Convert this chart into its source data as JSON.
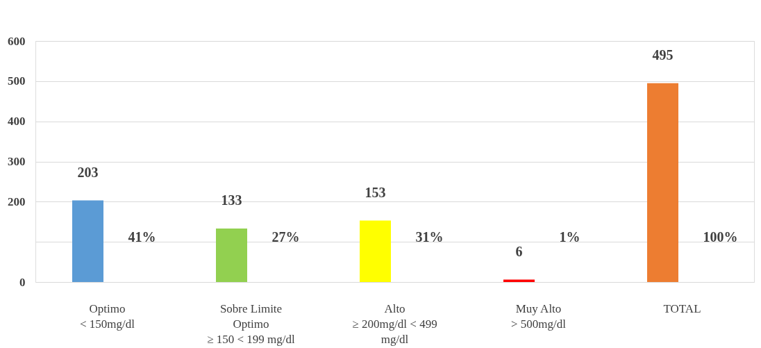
{
  "chart_data": {
    "type": "bar",
    "categories": [
      "Optimo\n< 150mg/dl",
      "Sobre Limite\nOptimo\n≥ 150  < 199 mg/dl",
      "Alto\n≥ 200mg/dl < 499\nmg/dl",
      "Muy Alto\n> 500mg/dl",
      "TOTAL"
    ],
    "values": [
      203,
      133,
      153,
      6,
      495
    ],
    "colors": [
      "#5b9bd5",
      "#92d050",
      "#ffff00",
      "#ff0000",
      "#ed7d31"
    ],
    "data_labels": true,
    "ylim": [
      0,
      600
    ],
    "yticks": [
      0,
      {
        "value": 100,
        "label": null
      },
      200,
      300,
      400,
      500,
      600
    ],
    "grid": "y",
    "annotations": [
      "41%",
      "27%",
      "31%",
      "1%",
      "100%"
    ]
  }
}
